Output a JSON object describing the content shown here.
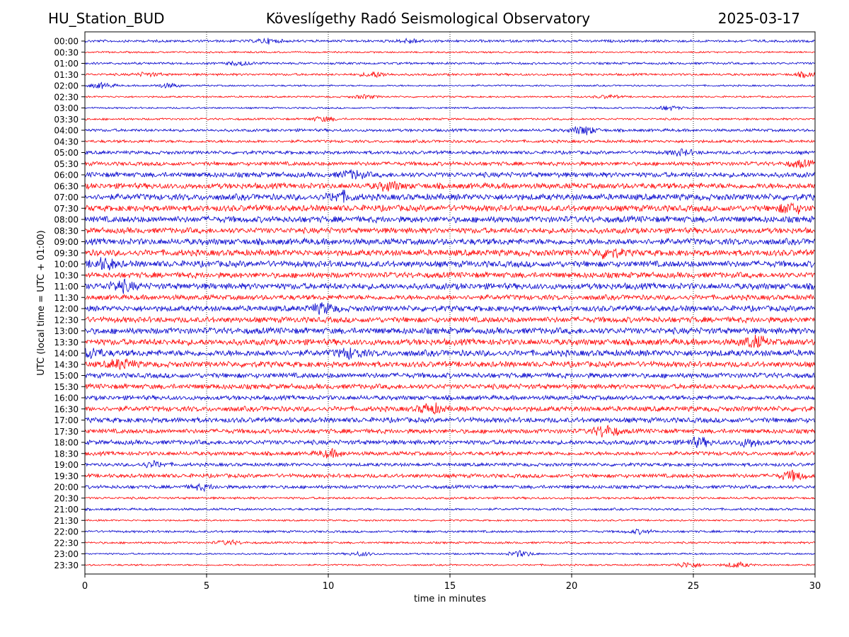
{
  "header": {
    "station": "HU_Station_BUD",
    "observatory": "Köveslígethy Radó Seismological Observatory",
    "date": "2025-03-17"
  },
  "chart_data": {
    "type": "line",
    "title": "Köveslígethy Radó Seismological Observatory",
    "xlabel": "time in minutes",
    "ylabel": "UTC (local time = UTC + 01:00)",
    "xlim": [
      0,
      30
    ],
    "x_ticks": [
      0,
      5,
      10,
      15,
      20,
      25,
      30
    ],
    "grid": "vertical dotted lines at x ticks",
    "colors": {
      "even": "#0000cc",
      "odd": "#ff0000"
    },
    "rows": [
      {
        "label": "00:00",
        "amp": 0.22,
        "bursts": [
          {
            "t": 7.5,
            "a": 0.35
          },
          {
            "t": 13.4,
            "a": 0.35
          }
        ]
      },
      {
        "label": "00:30",
        "amp": 0.15,
        "bursts": []
      },
      {
        "label": "01:00",
        "amp": 0.2,
        "bursts": [
          {
            "t": 6.4,
            "a": 0.3
          }
        ]
      },
      {
        "label": "01:30",
        "amp": 0.2,
        "bursts": [
          {
            "t": 2.6,
            "a": 0.3
          },
          {
            "t": 11.9,
            "a": 0.45
          },
          {
            "t": 29.7,
            "a": 0.4
          }
        ]
      },
      {
        "label": "02:00",
        "amp": 0.15,
        "bursts": [
          {
            "t": 0.7,
            "a": 0.45
          },
          {
            "t": 3.4,
            "a": 0.35
          }
        ]
      },
      {
        "label": "02:30",
        "amp": 0.15,
        "bursts": [
          {
            "t": 11.5,
            "a": 0.3
          },
          {
            "t": 21.5,
            "a": 0.25
          }
        ]
      },
      {
        "label": "03:00",
        "amp": 0.15,
        "bursts": [
          {
            "t": 24.0,
            "a": 0.35
          }
        ]
      },
      {
        "label": "03:30",
        "amp": 0.18,
        "bursts": [
          {
            "t": 9.8,
            "a": 0.4
          }
        ]
      },
      {
        "label": "04:00",
        "amp": 0.25,
        "bursts": [
          {
            "t": 20.5,
            "a": 0.7
          }
        ]
      },
      {
        "label": "04:30",
        "amp": 0.25,
        "bursts": []
      },
      {
        "label": "05:00",
        "amp": 0.3,
        "bursts": [
          {
            "t": 24.5,
            "a": 0.45
          }
        ]
      },
      {
        "label": "05:30",
        "amp": 0.35,
        "bursts": [
          {
            "t": 29.4,
            "a": 0.5
          }
        ]
      },
      {
        "label": "06:00",
        "amp": 0.45,
        "bursts": [
          {
            "t": 11.0,
            "a": 0.6
          }
        ]
      },
      {
        "label": "06:30",
        "amp": 0.5,
        "bursts": [
          {
            "t": 12.5,
            "a": 0.6
          }
        ]
      },
      {
        "label": "07:00",
        "amp": 0.55,
        "bursts": [
          {
            "t": 10.5,
            "a": 0.7
          }
        ]
      },
      {
        "label": "07:30",
        "amp": 0.55,
        "bursts": [
          {
            "t": 29.0,
            "a": 0.7
          }
        ]
      },
      {
        "label": "08:00",
        "amp": 0.55,
        "bursts": []
      },
      {
        "label": "08:30",
        "amp": 0.5,
        "bursts": []
      },
      {
        "label": "09:00",
        "amp": 0.55,
        "bursts": []
      },
      {
        "label": "09:30",
        "amp": 0.55,
        "bursts": [
          {
            "t": 21.5,
            "a": 0.7
          }
        ]
      },
      {
        "label": "10:00",
        "amp": 0.55,
        "bursts": [
          {
            "t": 0.8,
            "a": 0.8
          }
        ]
      },
      {
        "label": "10:30",
        "amp": 0.5,
        "bursts": []
      },
      {
        "label": "11:00",
        "amp": 0.55,
        "bursts": [
          {
            "t": 1.5,
            "a": 0.75
          }
        ]
      },
      {
        "label": "11:30",
        "amp": 0.45,
        "bursts": []
      },
      {
        "label": "12:00",
        "amp": 0.5,
        "bursts": [
          {
            "t": 9.8,
            "a": 0.7
          }
        ]
      },
      {
        "label": "12:30",
        "amp": 0.5,
        "bursts": []
      },
      {
        "label": "13:00",
        "amp": 0.55,
        "bursts": []
      },
      {
        "label": "13:30",
        "amp": 0.55,
        "bursts": [
          {
            "t": 27.5,
            "a": 0.85
          }
        ]
      },
      {
        "label": "14:00",
        "amp": 0.55,
        "bursts": [
          {
            "t": 0.2,
            "a": 0.8
          },
          {
            "t": 10.9,
            "a": 0.7
          }
        ]
      },
      {
        "label": "14:30",
        "amp": 0.5,
        "bursts": [
          {
            "t": 1.5,
            "a": 0.75
          }
        ]
      },
      {
        "label": "15:00",
        "amp": 0.45,
        "bursts": []
      },
      {
        "label": "15:30",
        "amp": 0.45,
        "bursts": []
      },
      {
        "label": "16:00",
        "amp": 0.4,
        "bursts": []
      },
      {
        "label": "16:30",
        "amp": 0.45,
        "bursts": [
          {
            "t": 14.2,
            "a": 0.75
          }
        ]
      },
      {
        "label": "17:00",
        "amp": 0.45,
        "bursts": []
      },
      {
        "label": "17:30",
        "amp": 0.4,
        "bursts": [
          {
            "t": 21.4,
            "a": 0.9
          }
        ]
      },
      {
        "label": "18:00",
        "amp": 0.4,
        "bursts": [
          {
            "t": 25.2,
            "a": 0.65
          },
          {
            "t": 27.3,
            "a": 0.6
          }
        ]
      },
      {
        "label": "18:30",
        "amp": 0.35,
        "bursts": [
          {
            "t": 10.1,
            "a": 0.55
          }
        ]
      },
      {
        "label": "19:00",
        "amp": 0.3,
        "bursts": [
          {
            "t": 2.8,
            "a": 0.45
          }
        ]
      },
      {
        "label": "19:30",
        "amp": 0.35,
        "bursts": [
          {
            "t": 29.1,
            "a": 0.75
          }
        ]
      },
      {
        "label": "20:00",
        "amp": 0.3,
        "bursts": [
          {
            "t": 4.8,
            "a": 0.4
          }
        ]
      },
      {
        "label": "20:30",
        "amp": 0.2,
        "bursts": []
      },
      {
        "label": "21:00",
        "amp": 0.2,
        "bursts": []
      },
      {
        "label": "21:30",
        "amp": 0.15,
        "bursts": []
      },
      {
        "label": "22:00",
        "amp": 0.2,
        "bursts": [
          {
            "t": 22.8,
            "a": 0.3
          }
        ]
      },
      {
        "label": "22:30",
        "amp": 0.18,
        "bursts": [
          {
            "t": 5.9,
            "a": 0.35
          }
        ]
      },
      {
        "label": "23:00",
        "amp": 0.15,
        "bursts": [
          {
            "t": 17.9,
            "a": 0.5
          },
          {
            "t": 11.4,
            "a": 0.35
          }
        ]
      },
      {
        "label": "23:30",
        "amp": 0.15,
        "bursts": [
          {
            "t": 24.8,
            "a": 0.5
          },
          {
            "t": 26.8,
            "a": 0.45
          }
        ]
      }
    ]
  }
}
